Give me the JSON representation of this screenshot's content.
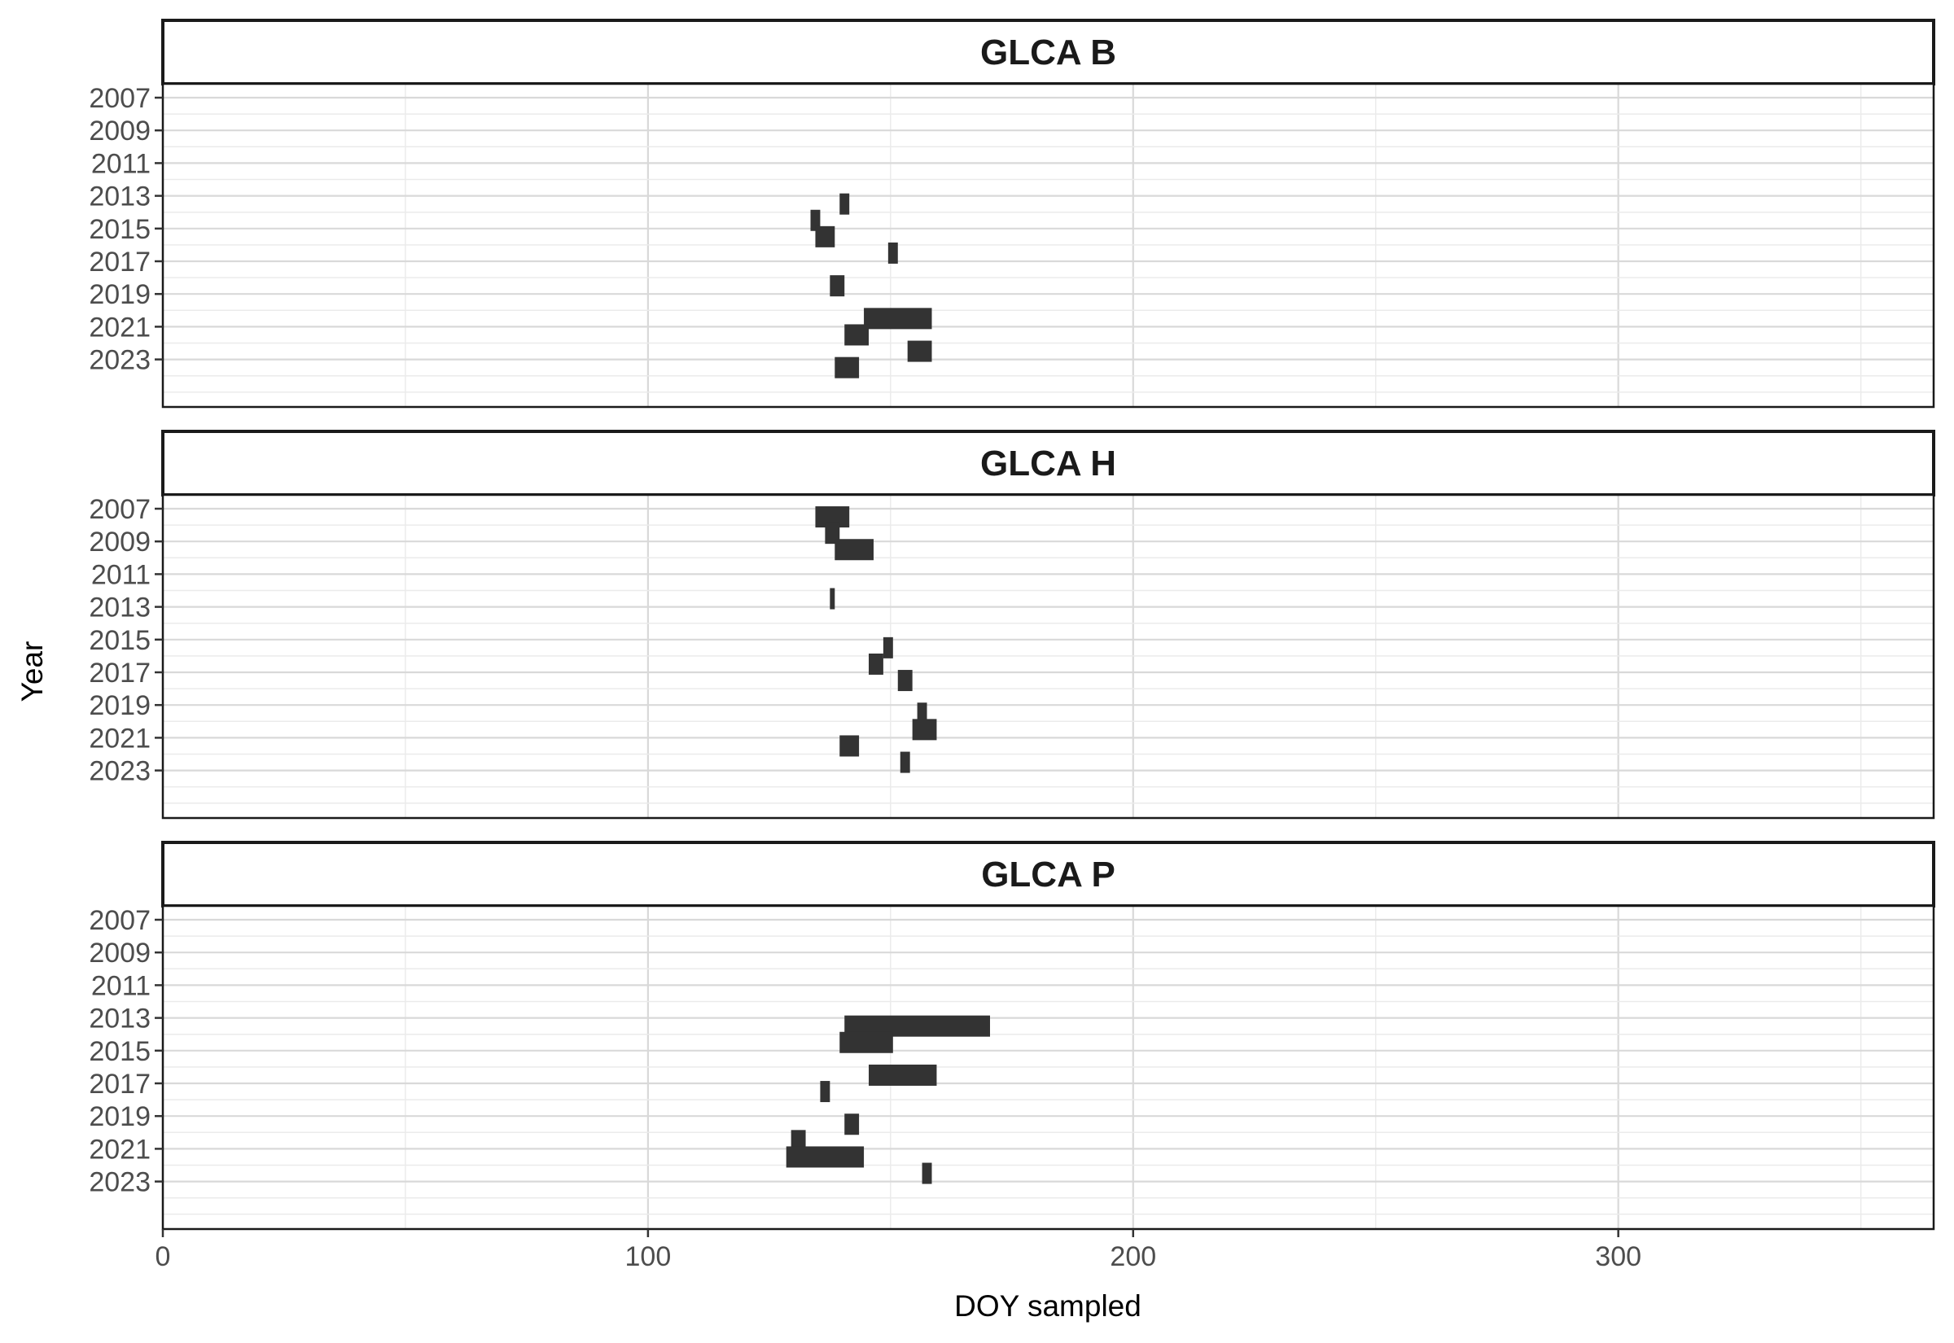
{
  "chart_data": {
    "type": "bar",
    "xlabel": "DOY sampled",
    "ylabel": "Year",
    "xlim": [
      0,
      365
    ],
    "x_ticks": [
      0,
      100,
      200,
      300
    ],
    "x_tick_labels": [
      "0",
      "100",
      "200",
      "300"
    ],
    "year_range": [
      2007,
      2024
    ],
    "y_tick_labels": [
      "2007",
      "2009",
      "2011",
      "2013",
      "2015",
      "2017",
      "2019",
      "2021",
      "2023"
    ],
    "grid": true,
    "bar_color": "#333333",
    "panels": [
      {
        "name": "GLCA B",
        "segments": [
          {
            "year": 2013,
            "start": 139.5,
            "end": 141.5
          },
          {
            "year": 2014,
            "start": 133.5,
            "end": 135.5
          },
          {
            "year": 2015,
            "start": 134.5,
            "end": 138.5
          },
          {
            "year": 2016,
            "start": 149.5,
            "end": 151.5
          },
          {
            "year": 2018,
            "start": 137.5,
            "end": 140.5
          },
          {
            "year": 2020,
            "start": 144.5,
            "end": 158.5
          },
          {
            "year": 2021,
            "start": 140.5,
            "end": 145.5
          },
          {
            "year": 2022,
            "start": 153.5,
            "end": 158.5
          },
          {
            "year": 2023,
            "start": 138.5,
            "end": 143.5
          }
        ]
      },
      {
        "name": "GLCA H",
        "segments": [
          {
            "year": 2007,
            "start": 134.5,
            "end": 141.5
          },
          {
            "year": 2008,
            "start": 136.5,
            "end": 139.5
          },
          {
            "year": 2009,
            "start": 138.5,
            "end": 146.5
          },
          {
            "year": 2012,
            "start": 137.5,
            "end": 138.5
          },
          {
            "year": 2015,
            "start": 148.5,
            "end": 150.5
          },
          {
            "year": 2016,
            "start": 145.5,
            "end": 148.5
          },
          {
            "year": 2017,
            "start": 151.5,
            "end": 154.5
          },
          {
            "year": 2019,
            "start": 155.5,
            "end": 157.5
          },
          {
            "year": 2020,
            "start": 154.5,
            "end": 159.5
          },
          {
            "year": 2021,
            "start": 139.5,
            "end": 143.5
          },
          {
            "year": 2022,
            "start": 152.0,
            "end": 154.0
          }
        ]
      },
      {
        "name": "GLCA P",
        "segments": [
          {
            "year": 2013,
            "start": 140.5,
            "end": 170.5
          },
          {
            "year": 2014,
            "start": 139.5,
            "end": 150.5
          },
          {
            "year": 2016,
            "start": 145.5,
            "end": 159.5
          },
          {
            "year": 2017,
            "start": 135.5,
            "end": 137.5
          },
          {
            "year": 2019,
            "start": 140.5,
            "end": 143.5
          },
          {
            "year": 2020,
            "start": 129.5,
            "end": 132.5
          },
          {
            "year": 2021,
            "start": 128.5,
            "end": 144.5
          },
          {
            "year": 2022,
            "start": 156.5,
            "end": 158.5
          }
        ]
      }
    ]
  }
}
